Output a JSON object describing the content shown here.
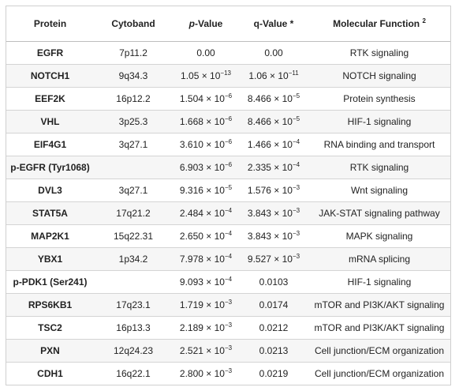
{
  "table": {
    "headers": [
      {
        "text": "Protein"
      },
      {
        "text": "Cytoband"
      },
      {
        "text": "p",
        "suffix": "-Value",
        "italic_part": true
      },
      {
        "text": "q-Value *"
      },
      {
        "text": "Molecular Function ",
        "sup": "2"
      }
    ],
    "rows": [
      {
        "protein": "EGFR",
        "cytoband": "7p11.2",
        "p_base": "0.00",
        "p_exp": "",
        "q_base": "0.00",
        "q_exp": "",
        "function": "RTK signaling"
      },
      {
        "protein": "NOTCH1",
        "cytoband": "9q34.3",
        "p_base": "1.05 × 10",
        "p_exp": "−13",
        "q_base": "1.06 × 10",
        "q_exp": "−11",
        "function": "NOTCH signaling"
      },
      {
        "protein": "EEF2K",
        "cytoband": "16p12.2",
        "p_base": "1.504 × 10",
        "p_exp": "−6",
        "q_base": "8.466 × 10",
        "q_exp": "−5",
        "function": "Protein synthesis"
      },
      {
        "protein": "VHL",
        "cytoband": "3p25.3",
        "p_base": "1.668 × 10",
        "p_exp": "−6",
        "q_base": "8.466 × 10",
        "q_exp": "−5",
        "function": "HIF-1 signaling"
      },
      {
        "protein": "EIF4G1",
        "cytoband": "3q27.1",
        "p_base": "3.610 × 10",
        "p_exp": "−6",
        "q_base": "1.466 × 10",
        "q_exp": "−4",
        "function": "RNA binding and transport"
      },
      {
        "protein": "p-EGFR (Tyr1068)",
        "cytoband": "",
        "p_base": "6.903 × 10",
        "p_exp": "−6",
        "q_base": "2.335 × 10",
        "q_exp": "−4",
        "function": "RTK signaling"
      },
      {
        "protein": "DVL3",
        "cytoband": "3q27.1",
        "p_base": "9.316 × 10",
        "p_exp": "−5",
        "q_base": "1.576 × 10",
        "q_exp": "−3",
        "function": "Wnt signaling"
      },
      {
        "protein": "STAT5A",
        "cytoband": "17q21.2",
        "p_base": "2.484 × 10",
        "p_exp": "−4",
        "q_base": "3.843 × 10",
        "q_exp": "−3",
        "function": "JAK-STAT signaling pathway"
      },
      {
        "protein": "MAP2K1",
        "cytoband": "15q22.31",
        "p_base": "2.650 × 10",
        "p_exp": "−4",
        "q_base": "3.843 × 10",
        "q_exp": "−3",
        "function": "MAPK signaling"
      },
      {
        "protein": "YBX1",
        "cytoband": "1p34.2",
        "p_base": "7.978 × 10",
        "p_exp": "−4",
        "q_base": "9.527 × 10",
        "q_exp": "−3",
        "function": "mRNA splicing"
      },
      {
        "protein": "p-PDK1 (Ser241)",
        "cytoband": "",
        "p_base": "9.093 × 10",
        "p_exp": "−4",
        "q_base": "0.0103",
        "q_exp": "",
        "function": "HIF-1 signaling"
      },
      {
        "protein": "RPS6KB1",
        "cytoband": "17q23.1",
        "p_base": "1.719 × 10",
        "p_exp": "−3",
        "q_base": "0.0174",
        "q_exp": "",
        "function": "mTOR and PI3K/AKT signaling"
      },
      {
        "protein": "TSC2",
        "cytoband": "16p13.3",
        "p_base": "2.189 × 10",
        "p_exp": "−3",
        "q_base": "0.0212",
        "q_exp": "",
        "function": "mTOR and PI3K/AKT signaling"
      },
      {
        "protein": "PXN",
        "cytoband": "12q24.23",
        "p_base": "2.521 × 10",
        "p_exp": "−3",
        "q_base": "0.0213",
        "q_exp": "",
        "function": "Cell junction/ECM organization"
      },
      {
        "protein": "CDH1",
        "cytoband": "16q22.1",
        "p_base": "2.800 × 10",
        "p_exp": "−3",
        "q_base": "0.0219",
        "q_exp": "",
        "function": "Cell junction/ECM organization"
      }
    ]
  }
}
